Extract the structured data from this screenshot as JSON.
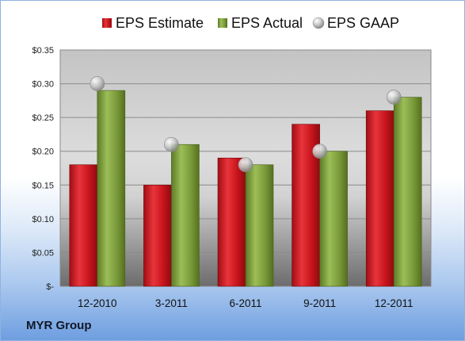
{
  "chart_data": {
    "type": "bar",
    "categories": [
      "12-2010",
      "3-2011",
      "6-2011",
      "9-2011",
      "12-2011"
    ],
    "series": [
      {
        "name": "EPS Estimate",
        "type": "bar",
        "color": "#c0161e",
        "values": [
          0.18,
          0.15,
          0.19,
          0.24,
          0.26
        ]
      },
      {
        "name": "EPS Actual",
        "type": "bar",
        "color": "#7a9a3a",
        "values": [
          0.29,
          0.21,
          0.18,
          0.2,
          0.28
        ]
      },
      {
        "name": "EPS GAAP",
        "type": "scatter",
        "color": "#b8b8b8",
        "values": [
          0.3,
          0.21,
          0.18,
          0.2,
          0.28
        ]
      }
    ],
    "ylim": [
      0,
      0.35
    ],
    "yticks": [
      0,
      0.05,
      0.1,
      0.15,
      0.2,
      0.25,
      0.3,
      0.35
    ],
    "ytick_labels": [
      "$-",
      "$0.05",
      "$0.10",
      "$0.15",
      "$0.20",
      "$0.25",
      "$0.30",
      "$0.35"
    ],
    "grid": true,
    "legend_position": "top"
  },
  "company": "MYR Group"
}
